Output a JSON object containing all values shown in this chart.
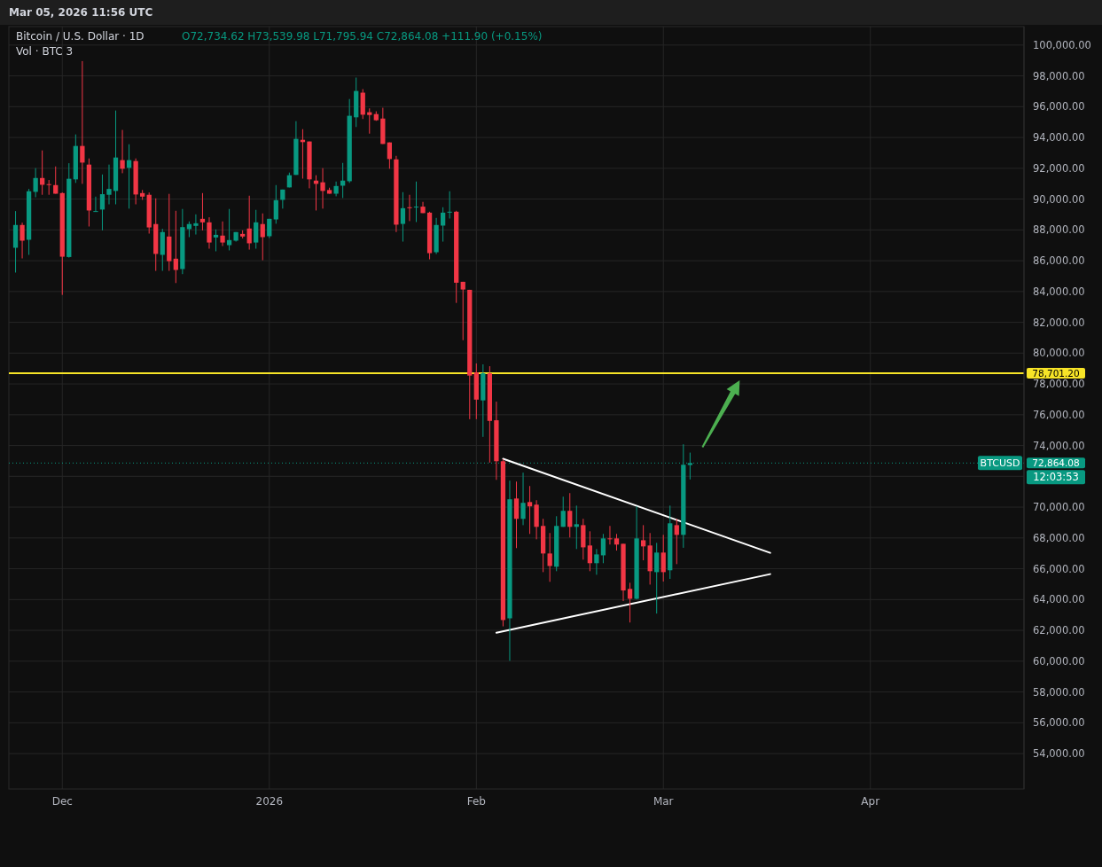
{
  "chart_data": {
    "type": "candlestick",
    "title": "Bitcoin / U.S. Dollar · 1D",
    "subtitle": "O72,734.62 H73,539.98 L71,795.94 C72,864.08 +111.90 (+0.15%)",
    "annotations": [
      "Mar 05, 2026 11:56 UTC",
      "Vol · BTC 3",
      "BTCUSD",
      "12:03:53"
    ],
    "colors": [
      "#089981",
      "#f23645",
      "#089981",
      "#089981",
      "#f23645",
      "#f23645",
      "#f23645",
      "#f23645",
      "#089981",
      "#089981",
      "#f23645",
      "#f23645",
      "#089981",
      "#089981",
      "#089981",
      "#089981",
      "#f23645",
      "#089981",
      "#f23645",
      "#f23645",
      "#f23645",
      "#f23645",
      "#089981",
      "#f23645",
      "#f23645",
      "#089981",
      "#089981",
      "#089981",
      "#f23645",
      "#f23645",
      "#089981",
      "#f23645",
      "#089981",
      "#089981",
      "#f23645",
      "#f23645",
      "#089981",
      "#f23645",
      "#089981",
      "#089981",
      "#089981",
      "#089981",
      "#089981",
      "#f23645",
      "#f23645",
      "#f23645",
      "#f23645",
      "#f23645",
      "#089981",
      "#089981",
      "#089981",
      "#089981",
      "#f23645",
      "#f23645",
      "#f23645",
      "#f23645",
      "#f23645",
      "#f23645",
      "#089981",
      "#f23645",
      "#089981",
      "#f23645",
      "#f23645",
      "#089981",
      "#089981",
      "#089981",
      "#f23645",
      "#f23645",
      "#f23645",
      "#f23645",
      "#089981",
      "#f23645",
      "#f23645",
      "#f23645",
      "#089981",
      "#f23645",
      "#089981",
      "#f23645",
      "#f23645",
      "#f23645",
      "#f23645",
      "#089981",
      "#089981",
      "#f23645",
      "#089981",
      "#f23645",
      "#f23645",
      "#089981",
      "#089981",
      "#f23645",
      "#f23645",
      "#f23645",
      "#f23645",
      "#089981",
      "#f23645",
      "#f23645",
      "#089981",
      "#f23645",
      "#089981",
      "#f23645",
      "#089981",
      "#089981"
    ],
    "x": [
      "2025-11-24",
      "2025-11-25",
      "2025-11-26",
      "2025-11-27",
      "2025-11-28",
      "2025-11-29",
      "2025-11-30",
      "2025-12-01",
      "2025-12-02",
      "2025-12-03",
      "2025-12-04",
      "2025-12-05",
      "2025-12-06",
      "2025-12-07",
      "2025-12-08",
      "2025-12-09",
      "2025-12-10",
      "2025-12-11",
      "2025-12-12",
      "2025-12-13",
      "2025-12-14",
      "2025-12-15",
      "2025-12-16",
      "2025-12-17",
      "2025-12-18",
      "2025-12-19",
      "2025-12-20",
      "2025-12-21",
      "2025-12-22",
      "2025-12-23",
      "2025-12-24",
      "2025-12-25",
      "2025-12-26",
      "2025-12-27",
      "2025-12-28",
      "2025-12-29",
      "2025-12-30",
      "2025-12-31",
      "2026-01-01",
      "2026-01-02",
      "2026-01-03",
      "2026-01-04",
      "2026-01-05",
      "2026-01-06",
      "2026-01-07",
      "2026-01-08",
      "2026-01-09",
      "2026-01-10",
      "2026-01-11",
      "2026-01-12",
      "2026-01-13",
      "2026-01-14",
      "2026-01-15",
      "2026-01-16",
      "2026-01-17",
      "2026-01-18",
      "2026-01-19",
      "2026-01-20",
      "2026-01-21",
      "2026-01-22",
      "2026-01-23",
      "2026-01-24",
      "2026-01-25",
      "2026-01-26",
      "2026-01-27",
      "2026-01-28",
      "2026-01-29",
      "2026-01-30",
      "2026-01-31",
      "2026-02-01",
      "2026-02-02",
      "2026-02-03",
      "2026-02-04",
      "2026-02-05",
      "2026-02-06",
      "2026-02-07",
      "2026-02-08",
      "2026-02-09",
      "2026-02-10",
      "2026-02-11",
      "2026-02-12",
      "2026-02-13",
      "2026-02-14",
      "2026-02-15",
      "2026-02-16",
      "2026-02-17",
      "2026-02-18",
      "2026-02-19",
      "2026-02-20",
      "2026-02-21",
      "2026-02-22",
      "2026-02-23",
      "2026-02-24",
      "2026-02-25",
      "2026-02-26",
      "2026-02-27",
      "2026-02-28",
      "2026-03-01",
      "2026-03-02",
      "2026-03-03",
      "2026-03-04",
      "2026-03-05"
    ],
    "ohlc": [
      [
        86840,
        89220,
        85230,
        88320
      ],
      [
        88320,
        88470,
        86150,
        87300
      ],
      [
        87360,
        90660,
        86380,
        90510
      ],
      [
        90470,
        92010,
        90120,
        91370
      ],
      [
        91370,
        93160,
        90280,
        90930
      ],
      [
        90970,
        91240,
        90280,
        90930
      ],
      [
        90910,
        92120,
        90350,
        90350
      ],
      [
        90390,
        90430,
        83780,
        86260
      ],
      [
        86240,
        92330,
        86200,
        91320
      ],
      [
        91280,
        94200,
        91050,
        93450
      ],
      [
        93450,
        98960,
        90990,
        92370
      ],
      [
        92240,
        92640,
        88220,
        89260
      ],
      [
        89200,
        90160,
        89200,
        89220
      ],
      [
        89320,
        91600,
        87970,
        90320
      ],
      [
        90280,
        92240,
        89660,
        90660
      ],
      [
        90530,
        95750,
        89660,
        92700
      ],
      [
        92530,
        94490,
        91680,
        91970
      ],
      [
        92030,
        93560,
        89380,
        92530
      ],
      [
        92470,
        92640,
        89660,
        90300
      ],
      [
        90390,
        90590,
        89950,
        90160
      ],
      [
        90280,
        90430,
        87760,
        88160
      ],
      [
        88380,
        90050,
        85340,
        86440
      ],
      [
        86380,
        88070,
        85340,
        87860
      ],
      [
        87570,
        90340,
        85340,
        85970
      ],
      [
        86130,
        89240,
        84550,
        85400
      ],
      [
        85460,
        89360,
        85130,
        88180
      ],
      [
        88050,
        88550,
        87530,
        88380
      ],
      [
        88260,
        89010,
        87700,
        88430
      ],
      [
        88720,
        90390,
        87970,
        88490
      ],
      [
        88490,
        88820,
        86780,
        87180
      ],
      [
        87510,
        88030,
        86610,
        87680
      ],
      [
        87630,
        88550,
        86950,
        87180
      ],
      [
        87010,
        89360,
        86670,
        87340
      ],
      [
        87300,
        87860,
        87240,
        87860
      ],
      [
        87740,
        87970,
        87450,
        87570
      ],
      [
        88090,
        90220,
        86720,
        87130
      ],
      [
        87180,
        89300,
        86780,
        88490
      ],
      [
        88380,
        89070,
        86030,
        87530
      ],
      [
        87590,
        88720,
        87470,
        88720
      ],
      [
        88680,
        90910,
        88400,
        89930
      ],
      [
        89950,
        90620,
        89380,
        90620
      ],
      [
        90760,
        91720,
        90760,
        91550
      ],
      [
        91570,
        95060,
        91570,
        93910
      ],
      [
        93850,
        94540,
        91330,
        93700
      ],
      [
        93740,
        93740,
        90700,
        91280
      ],
      [
        91200,
        91550,
        89260,
        90990
      ],
      [
        91090,
        92010,
        89380,
        90530
      ],
      [
        90590,
        90740,
        90350,
        90350
      ],
      [
        90350,
        91140,
        90180,
        90850
      ],
      [
        90870,
        92350,
        90070,
        91200
      ],
      [
        91160,
        96500,
        91050,
        95410
      ],
      [
        95310,
        97890,
        94680,
        97020
      ],
      [
        96910,
        97140,
        95200,
        95480
      ],
      [
        95640,
        95890,
        94250,
        95460
      ],
      [
        95520,
        95700,
        95080,
        95120
      ],
      [
        95230,
        95930,
        93580,
        93580
      ],
      [
        93680,
        93680,
        91970,
        92600
      ],
      [
        92580,
        92810,
        87860,
        88340
      ],
      [
        88390,
        90450,
        87240,
        89410
      ],
      [
        89470,
        90280,
        88570,
        89430
      ],
      [
        89490,
        91140,
        88510,
        89510
      ],
      [
        89510,
        89820,
        89090,
        89090
      ],
      [
        89120,
        89180,
        86090,
        86490
      ],
      [
        86550,
        88780,
        86430,
        88320
      ],
      [
        88280,
        89470,
        87240,
        89120
      ],
      [
        89160,
        90510,
        88740,
        89180
      ],
      [
        89180,
        89240,
        83260,
        84570
      ],
      [
        84630,
        84630,
        80840,
        84130
      ],
      [
        84110,
        84110,
        75710,
        78540
      ],
      [
        78750,
        79330,
        75710,
        76980
      ],
      [
        76930,
        79270,
        74560,
        78690
      ],
      [
        78690,
        79150,
        72890,
        75600
      ],
      [
        75640,
        76850,
        71770,
        72980
      ],
      [
        72980,
        73120,
        62260,
        62670
      ],
      [
        62780,
        71720,
        60020,
        70510
      ],
      [
        70560,
        71660,
        67340,
        69240
      ],
      [
        69240,
        72240,
        68830,
        70280
      ],
      [
        70330,
        71370,
        68260,
        70050
      ],
      [
        70160,
        70450,
        67910,
        68720
      ],
      [
        68780,
        69240,
        65780,
        66990
      ],
      [
        66990,
        68320,
        65150,
        66180
      ],
      [
        66130,
        69410,
        65840,
        68780
      ],
      [
        68720,
        70680,
        68720,
        69760
      ],
      [
        69760,
        70910,
        68030,
        68720
      ],
      [
        68720,
        70100,
        67280,
        68890
      ],
      [
        68830,
        69240,
        66590,
        67390
      ],
      [
        67510,
        68430,
        65840,
        66360
      ],
      [
        66360,
        67280,
        65610,
        66930
      ],
      [
        66870,
        68260,
        66360,
        67970
      ],
      [
        67970,
        68780,
        67570,
        67930
      ],
      [
        67970,
        68260,
        67180,
        67570
      ],
      [
        67620,
        67620,
        63900,
        64590
      ],
      [
        64690,
        65090,
        62510,
        64050
      ],
      [
        64050,
        70050,
        64010,
        67970
      ],
      [
        67850,
        68830,
        66550,
        67450
      ],
      [
        67510,
        68320,
        64970,
        65840
      ],
      [
        65780,
        67680,
        63090,
        67050
      ],
      [
        67050,
        68200,
        65170,
        65780
      ],
      [
        65900,
        70100,
        65340,
        68950
      ],
      [
        68830,
        69240,
        66300,
        68200
      ],
      [
        68200,
        74080,
        67360,
        72750
      ],
      [
        72734.62,
        73539.98,
        71795.94,
        72864.08
      ]
    ],
    "series": [
      {
        "type": "line",
        "color": "#ffffff",
        "x": [
          "2026-02-05",
          "2026-03-17"
        ],
        "values": [
          73140,
          67030
        ]
      },
      {
        "type": "line",
        "color": "#ffffff",
        "x": [
          "2026-02-04",
          "2026-03-17"
        ],
        "values": [
          61840,
          65650
        ]
      }
    ],
    "ref_lines": [
      {
        "axis": "y",
        "value": 78701.2,
        "label": "78,701.20",
        "color": "#f7e427",
        "line_style": "solid"
      },
      {
        "axis": "y",
        "value": 72864.08,
        "label": "72,864.08",
        "color": "#089981",
        "line_style": "dotted"
      }
    ],
    "xlim": [
      "2025-11-23",
      "2026-04-24"
    ],
    "xticks": [
      {
        "value": "2025-12-01",
        "label": "Dec"
      },
      {
        "value": "2026-01-01",
        "label": "2026"
      },
      {
        "value": "2026-02-01",
        "label": "Feb"
      },
      {
        "value": "2026-03-01",
        "label": "Mar"
      },
      {
        "value": "2026-04-01",
        "label": "Apr"
      }
    ],
    "ylim": [
      51700,
      101200
    ],
    "yticks": [
      {
        "value": 54000,
        "label": "54,000.00"
      },
      {
        "value": 56000,
        "label": "56,000.00"
      },
      {
        "value": 58000,
        "label": "58,000.00"
      },
      {
        "value": 60000,
        "label": "60,000.00"
      },
      {
        "value": 62000,
        "label": "62,000.00"
      },
      {
        "value": 64000,
        "label": "64,000.00"
      },
      {
        "value": 66000,
        "label": "66,000.00"
      },
      {
        "value": 68000,
        "label": "68,000.00"
      },
      {
        "value": 70000,
        "label": "70,000.00"
      },
      {
        "value": 72000,
        "label": null
      },
      {
        "value": 74000,
        "label": "74,000.00"
      },
      {
        "value": 76000,
        "label": "76,000.00"
      },
      {
        "value": 78000,
        "label": "78,000.00"
      },
      {
        "value": 80000,
        "label": "80,000.00"
      },
      {
        "value": 82000,
        "label": "82,000.00"
      },
      {
        "value": 84000,
        "label": "84,000.00"
      },
      {
        "value": 86000,
        "label": "86,000.00"
      },
      {
        "value": 88000,
        "label": "88,000.00"
      },
      {
        "value": 90000,
        "label": "90,000.00"
      },
      {
        "value": 92000,
        "label": "92,000.00"
      },
      {
        "value": 94000,
        "label": "94,000.00"
      },
      {
        "value": 96000,
        "label": "96,000.00"
      },
      {
        "value": 98000,
        "label": "98,000.00"
      },
      {
        "value": 100000,
        "label": "100,000.00"
      }
    ],
    "grid": true
  }
}
